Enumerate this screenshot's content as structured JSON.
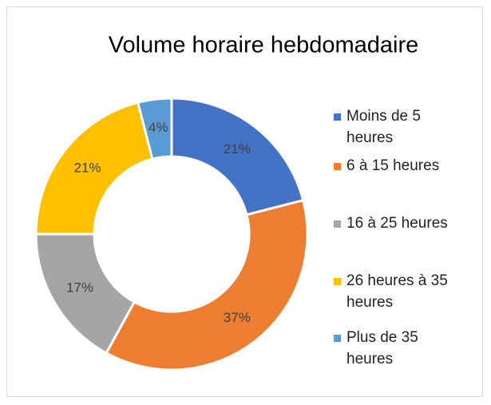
{
  "chart_data": {
    "type": "doughnut",
    "title": "Volume horaire hebdomadaire",
    "categories": [
      "Moins de 5 heures",
      "6 à 15 heures",
      "16 à 25 heures",
      "26 heures à 35 heures",
      "Plus de 35 heures"
    ],
    "values": [
      21,
      37,
      17,
      21,
      4
    ],
    "value_labels": [
      "21%",
      "37%",
      "17%",
      "21%",
      "4%"
    ],
    "colors": [
      "#4472c4",
      "#ed7d31",
      "#a5a5a5",
      "#ffc000",
      "#5b9bd5"
    ],
    "legend": "right"
  }
}
